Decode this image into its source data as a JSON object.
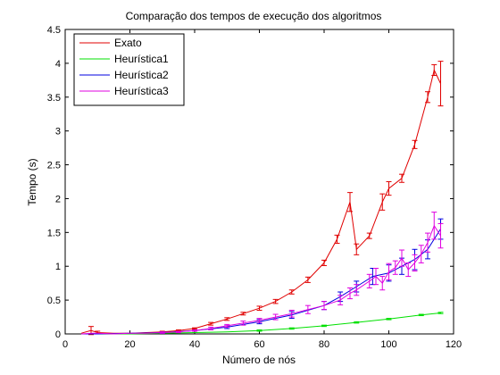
{
  "chart_data": {
    "type": "line",
    "title": "Comparação dos tempos de execução dos algoritmos",
    "xlabel": "Número de nós",
    "ylabel": "Tempo (s)",
    "xlim": [
      0,
      120
    ],
    "ylim": [
      0,
      4.5
    ],
    "xticks": [
      0,
      20,
      40,
      60,
      80,
      100,
      120
    ],
    "yticks": [
      0,
      0.5,
      1,
      1.5,
      2,
      2.5,
      3,
      3.5,
      4,
      4.5
    ],
    "xtick_labels": [
      "0",
      "20",
      "40",
      "60",
      "80",
      "100",
      "120"
    ],
    "ytick_labels": [
      "0",
      "0.5",
      "1",
      "1.5",
      "2",
      "2.5",
      "3",
      "3.5",
      "4",
      "4.5"
    ],
    "grid": false,
    "legend_position": "top-left",
    "error_bars": true,
    "series": [
      {
        "name": "Exato",
        "color": "#e00000",
        "x": [
          5,
          8,
          10,
          15,
          20,
          25,
          30,
          35,
          40,
          45,
          50,
          55,
          60,
          65,
          70,
          75,
          80,
          84,
          88,
          90,
          94,
          98,
          100,
          104,
          108,
          112,
          114,
          116
        ],
        "y": [
          0.01,
          0.05,
          0.02,
          0.01,
          0.01,
          0.02,
          0.03,
          0.05,
          0.08,
          0.15,
          0.22,
          0.3,
          0.38,
          0.48,
          0.62,
          0.8,
          1.05,
          1.4,
          1.95,
          1.25,
          1.45,
          1.95,
          2.15,
          2.3,
          2.8,
          3.5,
          3.9,
          3.7
        ],
        "err": [
          0.0,
          0.06,
          0.02,
          0.0,
          0.0,
          0.0,
          0.01,
          0.01,
          0.01,
          0.02,
          0.02,
          0.02,
          0.03,
          0.03,
          0.03,
          0.04,
          0.04,
          0.06,
          0.14,
          0.08,
          0.04,
          0.12,
          0.1,
          0.06,
          0.06,
          0.08,
          0.08,
          0.33
        ]
      },
      {
        "name": "Heurística1",
        "color": "#00e000",
        "x": [
          5,
          10,
          20,
          30,
          40,
          50,
          60,
          70,
          80,
          90,
          100,
          110,
          116
        ],
        "y": [
          0.0,
          0.0,
          0.0,
          0.01,
          0.02,
          0.03,
          0.05,
          0.08,
          0.12,
          0.17,
          0.22,
          0.28,
          0.31
        ],
        "err": [
          0,
          0,
          0,
          0,
          0,
          0,
          0.01,
          0.01,
          0.01,
          0.01,
          0.01,
          0.01,
          0.01
        ]
      },
      {
        "name": "Heurística2",
        "color": "#0000e0",
        "x": [
          5,
          10,
          20,
          30,
          40,
          50,
          60,
          70,
          80,
          85,
          90,
          95,
          100,
          104,
          108,
          112,
          116
        ],
        "y": [
          0.0,
          0.0,
          0.01,
          0.02,
          0.05,
          0.1,
          0.18,
          0.28,
          0.42,
          0.55,
          0.7,
          0.85,
          0.9,
          1.0,
          1.1,
          1.25,
          1.55
        ],
        "err": [
          0,
          0,
          0,
          0.01,
          0.01,
          0.02,
          0.03,
          0.05,
          0.06,
          0.07,
          0.08,
          0.12,
          0.12,
          0.12,
          0.15,
          0.14,
          0.15
        ]
      },
      {
        "name": "Heurística3",
        "color": "#e000e0",
        "x": [
          5,
          8,
          10,
          15,
          20,
          25,
          30,
          35,
          40,
          45,
          50,
          55,
          60,
          65,
          70,
          75,
          80,
          85,
          88,
          90,
          94,
          96,
          98,
          100,
          102,
          104,
          106,
          108,
          110,
          112,
          114,
          116
        ],
        "y": [
          0.0,
          0.01,
          0.01,
          0.0,
          0.01,
          0.01,
          0.02,
          0.03,
          0.05,
          0.08,
          0.12,
          0.16,
          0.2,
          0.25,
          0.3,
          0.36,
          0.42,
          0.5,
          0.6,
          0.65,
          0.78,
          0.85,
          0.75,
          0.92,
          0.98,
          1.12,
          0.95,
          1.05,
          1.18,
          1.35,
          1.6,
          1.45
        ],
        "err": [
          0,
          0,
          0,
          0,
          0,
          0,
          0.01,
          0.01,
          0.01,
          0.02,
          0.02,
          0.03,
          0.03,
          0.04,
          0.05,
          0.06,
          0.06,
          0.07,
          0.08,
          0.08,
          0.1,
          0.12,
          0.1,
          0.12,
          0.1,
          0.12,
          0.1,
          0.12,
          0.13,
          0.14,
          0.2,
          0.18
        ]
      }
    ]
  }
}
